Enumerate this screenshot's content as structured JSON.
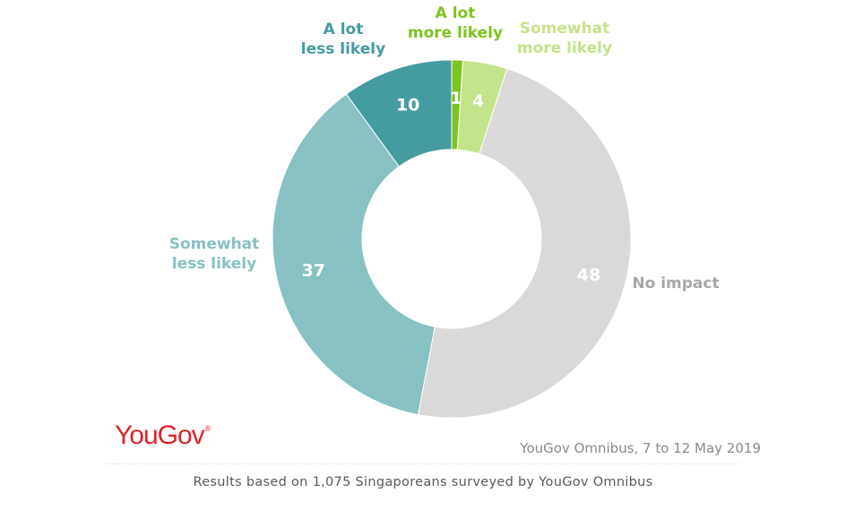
{
  "chart_data": {
    "type": "pie",
    "donut": true,
    "slices": [
      {
        "label": "A lot more likely",
        "label_lines": [
          "A lot",
          "more likely"
        ],
        "value": 1,
        "color": "#7ec41f",
        "label_color": "#7ec41f"
      },
      {
        "label": "Somewhat more likely",
        "label_lines": [
          "Somewhat",
          "more likely"
        ],
        "value": 4,
        "color": "#c3e48a",
        "label_color": "#c3e48a"
      },
      {
        "label": "No impact",
        "label_lines": [
          "No impact"
        ],
        "value": 48,
        "color": "#d9d9d9",
        "label_color": "#a7a7a7"
      },
      {
        "label": "Somewhat less likely",
        "label_lines": [
          "Somewhat",
          "less likely"
        ],
        "value": 37,
        "color": "#88c1c2",
        "label_color": "#88c1c2"
      },
      {
        "label": "A lot less likely",
        "label_lines": [
          "A lot",
          "less likely"
        ],
        "value": 10,
        "color": "#459c9f",
        "label_color": "#459c9f"
      }
    ]
  },
  "branding": {
    "logo_text": "YouGov",
    "logo_mark": "®",
    "source": "YouGov Omnibus, 7 to 12 May 2019"
  },
  "caption": "Results based on 1,075 Singaporeans surveyed by YouGov Omnibus"
}
